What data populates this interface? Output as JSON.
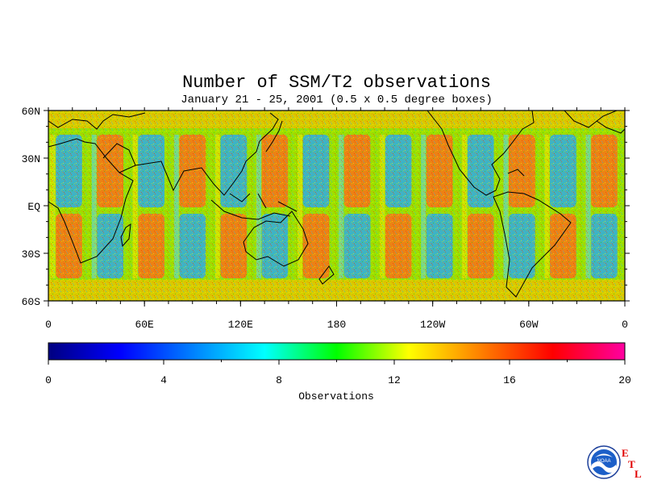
{
  "title": "Number of SSM/T2 observations",
  "subtitle": "January 21 - 25, 2001 (0.5 x 0.5 degree boxes)",
  "map": {
    "lat_ticks": [
      "60N",
      "30N",
      "EQ",
      "30S",
      "60S"
    ],
    "lon_ticks": [
      "0",
      "60E",
      "120E",
      "180",
      "120W",
      "60W",
      "0"
    ],
    "lat_range": [
      -60,
      60
    ],
    "lon_range": [
      0,
      360
    ]
  },
  "colorbar": {
    "label": "Observations",
    "min": 0,
    "max": 20,
    "tick_labels": [
      "0",
      "4",
      "8",
      "12",
      "16",
      "20"
    ],
    "colors": [
      "#000080",
      "#0000ff",
      "#0080ff",
      "#00ffff",
      "#00ff00",
      "#ffff00",
      "#ff8000",
      "#ff0000",
      "#ff00a0"
    ]
  },
  "logo": {
    "name": "NOAA",
    "letters": [
      "E",
      "T",
      "L"
    ]
  }
}
